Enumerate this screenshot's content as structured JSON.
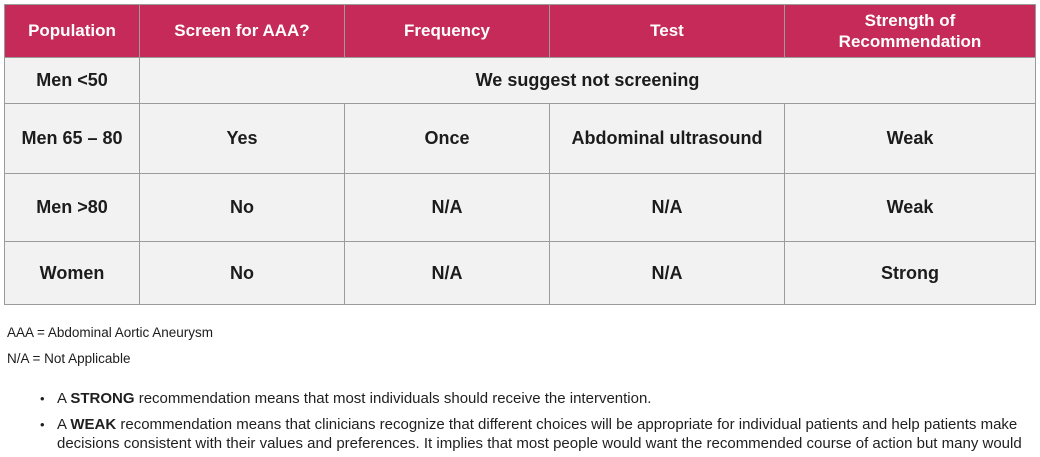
{
  "colors": {
    "accent": "#c52a58",
    "yes": "#0a8a43",
    "no": "#d62b24"
  },
  "table": {
    "headers": [
      "Population",
      "Screen for AAA?",
      "Frequency",
      "Test",
      "Strength of\nRecommendation"
    ],
    "rows": [
      {
        "population": "Men <50",
        "message": "We suggest not screening"
      },
      {
        "population": "Men 65 – 80",
        "screen": "Yes",
        "screen_class": "decision yes",
        "frequency": "Once",
        "test": "Abdominal ultrasound",
        "strength": "Weak"
      },
      {
        "population": "Men >80",
        "screen": "No",
        "screen_class": "decision no",
        "frequency": "N/A",
        "test": "N/A",
        "strength": "Weak"
      },
      {
        "population": "Women",
        "screen": "No",
        "screen_class": "decision no",
        "frequency": "N/A",
        "test": "N/A",
        "strength": "Strong"
      }
    ]
  },
  "footnotes": [
    "AAA = Abdominal Aortic Aneurysm",
    "N/A = Not Applicable"
  ],
  "bullets": [
    {
      "prefix": "A ",
      "bold": "STRONG",
      "rest": " recommendation means that most individuals should receive the intervention."
    },
    {
      "prefix": "A ",
      "bold": "WEAK",
      "rest": " recommendation means that clinicians recognize that different choices will be appropriate for individual patients and help patients make decisions consistent with their values and preferences. It implies that most people would want the recommended course of action but many would not."
    }
  ]
}
